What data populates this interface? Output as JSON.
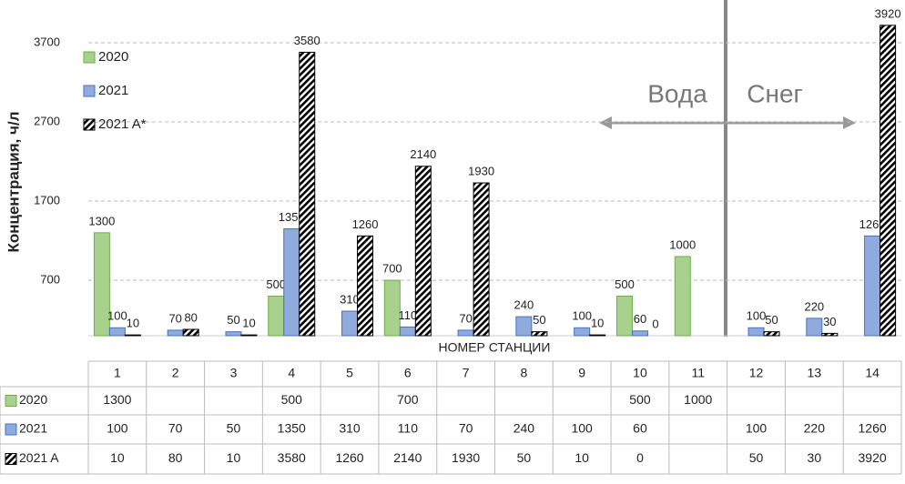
{
  "chart_data": {
    "type": "bar",
    "y_label": "Концентрация, ч/л",
    "x_label": "НОМЕР СТАНЦИИ",
    "categories": [
      "1",
      "2",
      "3",
      "4",
      "5",
      "6",
      "7",
      "8",
      "9",
      "10",
      "11",
      "12",
      "13",
      "14"
    ],
    "series": [
      {
        "name": "2020",
        "color": "#a9d18e",
        "edge_color": "#70ad47",
        "values": [
          1300,
          null,
          null,
          500,
          null,
          700,
          null,
          null,
          null,
          500,
          1000,
          null,
          null,
          null
        ]
      },
      {
        "name": "2021",
        "color": "#8faadc",
        "edge_color": "#4472c4",
        "values": [
          100,
          70,
          50,
          1350,
          310,
          110,
          70,
          240,
          100,
          60,
          null,
          100,
          220,
          1260
        ]
      },
      {
        "name": "2021 A*",
        "color": "#000000",
        "edge_color": "#000000",
        "pattern": "diagonal-hatch",
        "values": [
          10,
          80,
          10,
          3580,
          1260,
          2140,
          1930,
          50,
          10,
          0,
          null,
          50,
          30,
          3920
        ]
      }
    ],
    "table_row_labels": [
      "2020",
      "2021",
      "2021 A"
    ],
    "ylim": [
      0,
      4240
    ],
    "yticks": [
      700,
      1700,
      2700,
      3700
    ],
    "grid": true,
    "legend": "left",
    "annotations": [
      "Вода",
      "Снег"
    ]
  }
}
